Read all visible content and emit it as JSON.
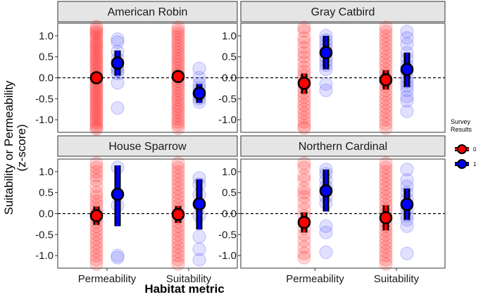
{
  "chart_data": {
    "type": "scatter",
    "title": "",
    "xlabel": "Habitat metric",
    "ylabel_lines": [
      "Suitability or Permeability",
      "(z-score)"
    ],
    "categories": [
      "Permeability",
      "Suitability"
    ],
    "ylim": [
      -1.3,
      1.3
    ],
    "yticks": [
      -1.0,
      -0.5,
      0.0,
      0.5,
      1.0
    ],
    "ytick_labels": [
      "-1.0",
      "-0.5",
      "0.0",
      "0.5",
      "1.0"
    ],
    "reference_line": 0.0,
    "legend": {
      "title_lines": [
        "Survey",
        "Results"
      ],
      "entries": [
        {
          "label": "0",
          "color": "#ff0000"
        },
        {
          "label": "1",
          "color": "#0000ff"
        }
      ],
      "position": "right"
    },
    "panels": [
      {
        "title": "American Robin",
        "groups": [
          {
            "category": "Permeability",
            "survey": "0",
            "mean": 0.0,
            "lower": -0.13,
            "upper": 0.12,
            "points": [
              1.22,
              1.15,
              1.1,
              1.05,
              0.98,
              0.92,
              0.85,
              0.8,
              0.74,
              0.68,
              0.62,
              0.55,
              0.5,
              0.44,
              0.38,
              0.32,
              0.26,
              0.2,
              0.14,
              0.08,
              0.02,
              -0.04,
              -0.1,
              -0.16,
              -0.22,
              -0.28,
              -0.34,
              -0.4,
              -0.46,
              -0.52,
              -0.58,
              -0.64,
              -0.7,
              -0.76,
              -0.82,
              -0.88,
              -0.94,
              -1.0,
              -1.06,
              -1.12,
              -1.18,
              -1.22
            ]
          },
          {
            "category": "Permeability",
            "survey": "1",
            "mean": 0.35,
            "lower": 0.05,
            "upper": 0.65,
            "points": [
              0.92,
              0.85,
              0.62,
              0.45,
              0.35,
              0.25,
              0.18,
              0.1,
              -0.12,
              -0.72
            ]
          },
          {
            "category": "Suitability",
            "survey": "0",
            "mean": 0.03,
            "lower": -0.1,
            "upper": 0.15,
            "points": [
              1.2,
              1.12,
              1.05,
              0.98,
              0.9,
              0.82,
              0.75,
              0.68,
              0.6,
              0.52,
              0.45,
              0.38,
              0.3,
              0.22,
              0.15,
              0.08,
              0.0,
              -0.08,
              -0.15,
              -0.22,
              -0.3,
              -0.38,
              -0.45,
              -0.52,
              -0.6,
              -0.68,
              -0.75,
              -0.82,
              -0.9,
              -0.98,
              -1.05,
              -1.12,
              -1.2
            ]
          },
          {
            "category": "Suitability",
            "survey": "1",
            "mean": -0.37,
            "lower": -0.6,
            "upper": -0.15,
            "points": [
              0.22,
              0.0,
              -0.15,
              -0.25,
              -0.35,
              -0.42,
              -0.5,
              -0.58
            ]
          }
        ]
      },
      {
        "title": "Gray Catbird",
        "groups": [
          {
            "category": "Permeability",
            "survey": "0",
            "mean": -0.13,
            "lower": -0.38,
            "upper": 0.1,
            "points": [
              1.2,
              1.12,
              0.95,
              0.85,
              0.72,
              0.6,
              0.5,
              0.38,
              0.25,
              0.15,
              0.05,
              -0.05,
              -0.15,
              -0.25,
              -0.35,
              -0.45,
              -0.55,
              -0.65,
              -0.75,
              -0.85,
              -0.95,
              -1.05,
              -1.15,
              -1.2
            ]
          },
          {
            "category": "Permeability",
            "survey": "1",
            "mean": 0.6,
            "lower": 0.2,
            "upper": 1.0,
            "points": [
              1.0,
              0.9,
              0.8,
              0.7,
              0.6,
              0.5,
              0.4,
              0.3,
              0.2,
              -0.15,
              -0.3
            ]
          },
          {
            "category": "Suitability",
            "survey": "0",
            "mean": -0.05,
            "lower": -0.28,
            "upper": 0.18,
            "points": [
              1.2,
              1.1,
              1.0,
              0.9,
              0.8,
              0.7,
              0.6,
              0.5,
              0.4,
              0.3,
              0.2,
              0.1,
              0.0,
              -0.1,
              -0.2,
              -0.3,
              -0.4,
              -0.5,
              -0.6,
              -0.7,
              -0.8,
              -0.9,
              -1.0,
              -1.1,
              -1.2
            ]
          },
          {
            "category": "Suitability",
            "survey": "1",
            "mean": 0.2,
            "lower": -0.22,
            "upper": 0.6,
            "points": [
              1.1,
              0.95,
              0.8,
              0.6,
              0.45,
              0.3,
              0.15,
              0.0,
              -0.1,
              -0.2,
              -0.3,
              -0.45,
              -0.55,
              -0.8
            ]
          }
        ]
      },
      {
        "title": "House Sparrow",
        "groups": [
          {
            "category": "Permeability",
            "survey": "0",
            "mean": -0.05,
            "lower": -0.27,
            "upper": 0.17,
            "points": [
              1.2,
              1.1,
              1.0,
              0.9,
              0.8,
              0.65,
              0.5,
              0.4,
              0.3,
              0.2,
              0.1,
              0.0,
              -0.1,
              -0.2,
              -0.3,
              -0.4,
              -0.5,
              -0.6,
              -0.7,
              -0.8,
              -0.9,
              -1.0,
              -1.1,
              -1.2
            ]
          },
          {
            "category": "Permeability",
            "survey": "1",
            "mean": 0.46,
            "lower": -0.3,
            "upper": 1.15,
            "points": [
              1.1,
              0.2,
              -1.0,
              -1.05
            ]
          },
          {
            "category": "Suitability",
            "survey": "0",
            "mean": -0.02,
            "lower": -0.22,
            "upper": 0.18,
            "points": [
              1.2,
              1.1,
              1.0,
              0.9,
              0.8,
              0.7,
              0.6,
              0.5,
              0.4,
              0.3,
              0.2,
              0.1,
              0.0,
              -0.1,
              -0.2,
              -0.3,
              -0.4,
              -0.5,
              -0.6,
              -0.7,
              -0.8,
              -0.9,
              -1.0,
              -1.1,
              -1.2
            ]
          },
          {
            "category": "Suitability",
            "survey": "1",
            "mean": 0.23,
            "lower": -0.38,
            "upper": 0.82,
            "points": [
              0.85,
              0.7,
              0.45,
              0.2,
              -0.05,
              -0.55,
              -0.85,
              -1.1
            ]
          }
        ]
      },
      {
        "title": "Northern Cardinal",
        "groups": [
          {
            "category": "Permeability",
            "survey": "0",
            "mean": -0.21,
            "lower": -0.45,
            "upper": 0.03,
            "points": [
              1.2,
              1.1,
              0.9,
              0.8,
              0.6,
              0.5,
              0.4,
              0.25,
              0.1,
              -0.05,
              -0.2,
              -0.35,
              -0.5,
              -0.65,
              -0.8,
              -0.95,
              -1.05
            ]
          },
          {
            "category": "Permeability",
            "survey": "1",
            "mean": 0.54,
            "lower": 0.05,
            "upper": 1.05,
            "points": [
              1.05,
              0.95,
              0.8,
              0.65,
              0.55,
              0.4,
              0.25,
              -0.3,
              -0.45,
              -0.92
            ]
          },
          {
            "category": "Suitability",
            "survey": "0",
            "mean": -0.1,
            "lower": -0.4,
            "upper": 0.2,
            "points": [
              1.2,
              1.1,
              1.0,
              0.9,
              0.8,
              0.7,
              0.6,
              0.5,
              0.4,
              0.3,
              0.2,
              0.1,
              0.0,
              -0.1,
              -0.2,
              -0.3,
              -0.4,
              -0.5,
              -0.6,
              -0.7,
              -0.8,
              -0.9,
              -1.0,
              -1.1,
              -1.2
            ]
          },
          {
            "category": "Suitability",
            "survey": "1",
            "mean": 0.22,
            "lower": -0.15,
            "upper": 0.6,
            "points": [
              1.05,
              0.8,
              0.65,
              0.5,
              0.35,
              0.2,
              0.1,
              -0.05,
              -0.15,
              -0.3,
              -0.95
            ]
          }
        ]
      }
    ],
    "colors": {
      "survey0": "#ff0000",
      "survey1": "#0000ff",
      "strip_bg": "#e5e5e5",
      "panel_border": "#333333"
    }
  }
}
